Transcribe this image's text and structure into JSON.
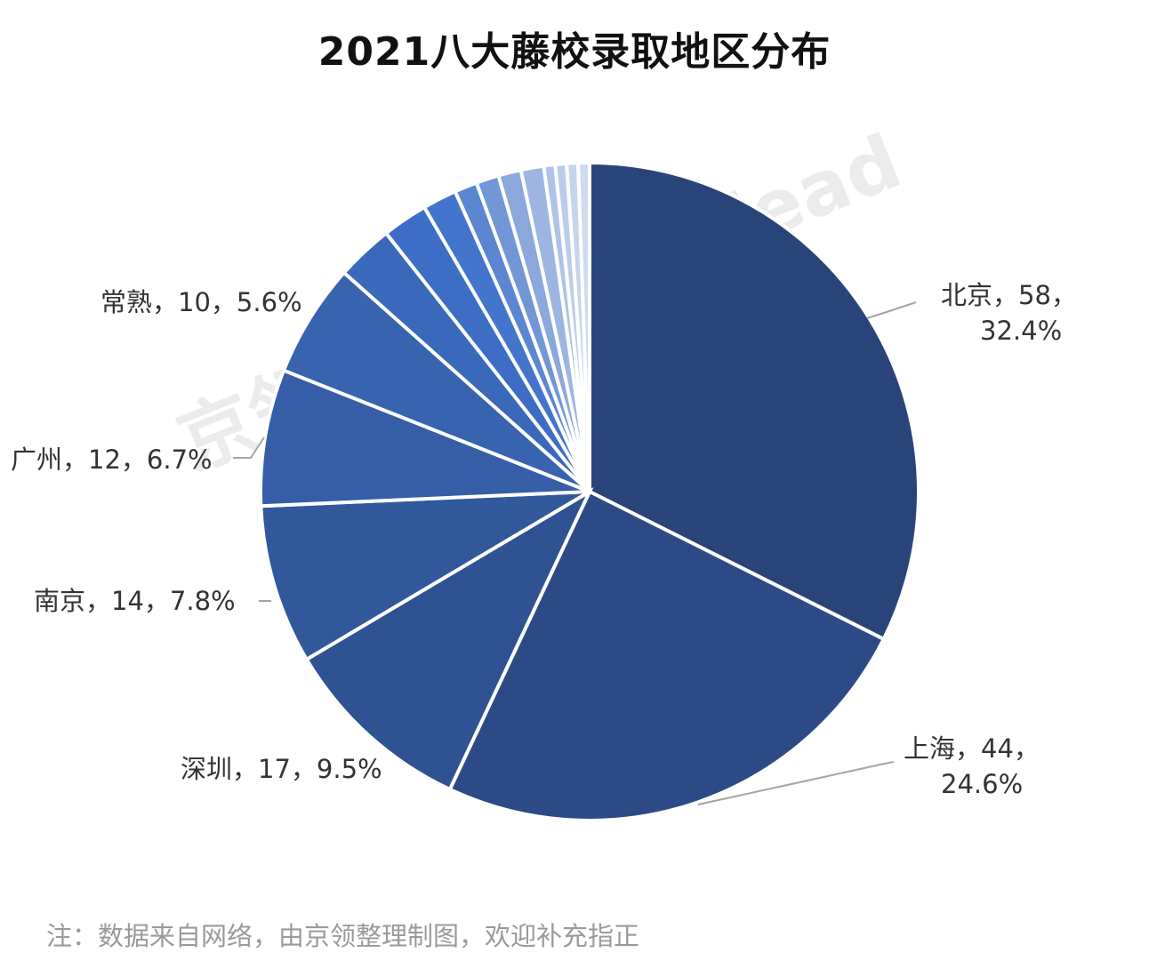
{
  "title": "2021八大藤校录取地区分布",
  "note": "注：数据来自网络，由京领整理制图，欢迎补充指正",
  "watermark": "京领新国际 Kinglead",
  "chart_data": {
    "type": "pie",
    "title": "2021八大藤校录取地区分布",
    "slices": [
      {
        "name": "北京",
        "value": 58,
        "percent": "32.4%",
        "color": "#294479",
        "label_line1": "北京，58，",
        "label_line2": "32.4%"
      },
      {
        "name": "上海",
        "value": 44,
        "percent": "24.6%",
        "color": "#2c4b86",
        "label_line1": "上海，44，",
        "label_line2": "24.6%"
      },
      {
        "name": "深圳",
        "value": 17,
        "percent": "9.5%",
        "color": "#2f5292",
        "label_line1": "深圳，17，9.5%",
        "label_line2": ""
      },
      {
        "name": "南京",
        "value": 14,
        "percent": "7.8%",
        "color": "#32589c",
        "label_line1": "南京，14，7.8%",
        "label_line2": ""
      },
      {
        "name": "广州",
        "value": 12,
        "percent": "6.7%",
        "color": "#355ea6",
        "label_line1": "广州，12，6.7%",
        "label_line2": ""
      },
      {
        "name": "常熟",
        "value": 10,
        "percent": "5.6%",
        "color": "#3863af",
        "label_line1": "常熟，10，5.6%",
        "label_line2": ""
      },
      {
        "name": "",
        "value": 5,
        "color": "#3a68ba"
      },
      {
        "name": "",
        "value": 4,
        "color": "#3d6dc4"
      },
      {
        "name": "",
        "value": 3,
        "color": "#4475cd"
      },
      {
        "name": "",
        "value": 2,
        "color": "#5a86d2"
      },
      {
        "name": "",
        "value": 2,
        "color": "#7297d6"
      },
      {
        "name": "",
        "value": 2,
        "color": "#8aa8db"
      },
      {
        "name": "",
        "value": 2,
        "color": "#9db6e1"
      },
      {
        "name": "",
        "value": 1,
        "color": "#aec3e6"
      },
      {
        "name": "",
        "value": 1,
        "color": "#bccde9"
      },
      {
        "name": "",
        "value": 1,
        "color": "#c6d5ec"
      },
      {
        "name": "",
        "value": 1,
        "color": "#cfdbef"
      }
    ]
  }
}
